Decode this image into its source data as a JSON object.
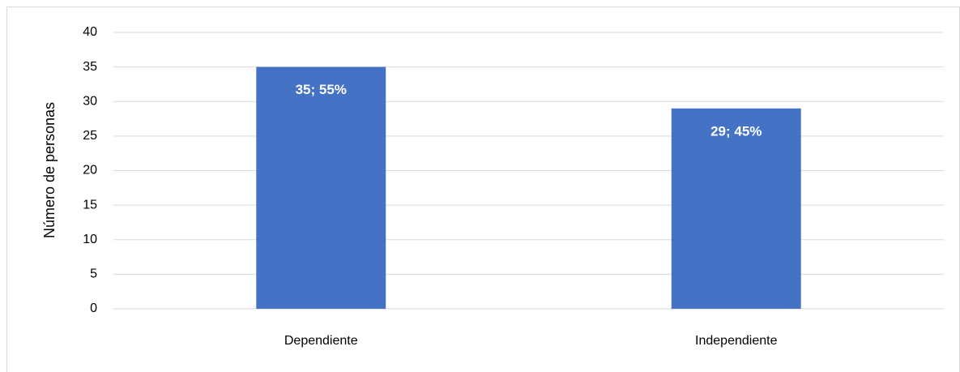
{
  "chart_data": {
    "type": "bar",
    "y_label": "Número de personas",
    "categories": [
      "Dependiente",
      "Independiente"
    ],
    "values": [
      35,
      29
    ],
    "value_labels": [
      "35; 55%",
      "29; 45%"
    ],
    "color": "#4472c4",
    "ylim": [
      0,
      40
    ],
    "yticks": [
      0,
      5,
      10,
      15,
      20,
      25,
      30,
      35,
      40
    ],
    "grid": true
  }
}
